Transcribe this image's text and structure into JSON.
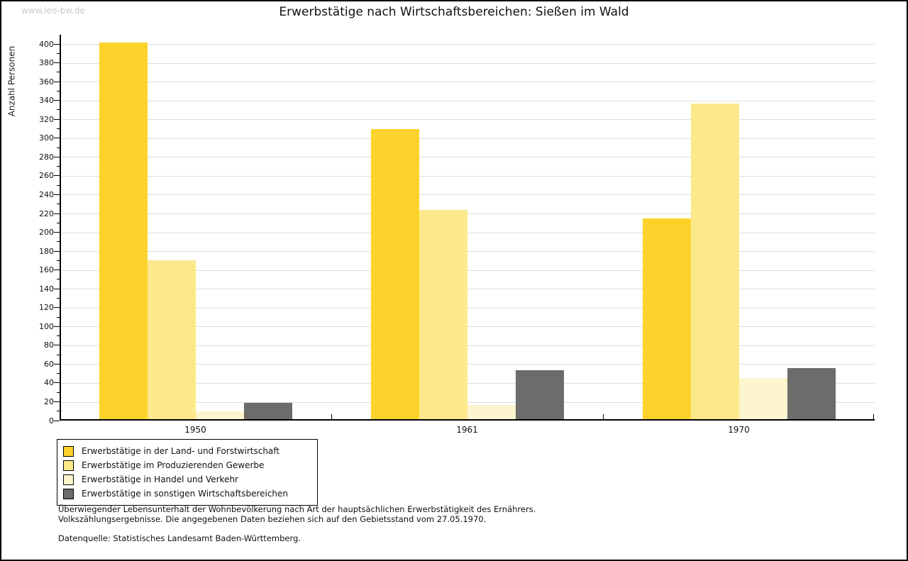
{
  "watermark": "www.leo-bw.de",
  "header": {
    "title": "Erwerbstätige nach Wirtschaftsbereichen: Sießen im Wald"
  },
  "chart_data": {
    "type": "bar",
    "title": "Erwerbstätige nach Wirtschaftsbereichen: Sießen im Wald",
    "xlabel": "",
    "ylabel": "Anzahl Personen",
    "categories": [
      "1950",
      "1961",
      "1970"
    ],
    "series": [
      {
        "name": "Erwerbstätige in der Land- und Forstwirtschaft",
        "color": "#fcd32b",
        "values": [
          400,
          308,
          213
        ]
      },
      {
        "name": "Erwerbstätige im Produzierenden Gewerbe",
        "color": "#fce98c",
        "values": [
          169,
          222,
          335
        ]
      },
      {
        "name": "Erwerbstätige in Handel und Verkehr",
        "color": "#fcf4cd",
        "values": [
          8,
          15,
          44
        ]
      },
      {
        "name": "Erwerbstätige in sonstigen Wirtschaftsbereichen",
        "color": "#6c6c6c",
        "values": [
          17,
          52,
          54
        ]
      }
    ],
    "ylim": [
      0,
      400
    ],
    "ytick_step": 20,
    "yminor_step": 10,
    "grid": true,
    "gridline_color": "#dedede",
    "legend_position": "bottom-left"
  },
  "notes": {
    "line1": "Überwiegender Lebensunterhalt der Wohnbevölkerung nach Art der hauptsächlichen Erwerbstätigkeit des Ernährers.",
    "line2": "Volkszählungsergebnisse. Die angegebenen Daten beziehen sich auf den Gebietsstand vom 27.05.1970.",
    "source": "Datenquelle: Statistisches Landesamt Baden-Württemberg."
  }
}
